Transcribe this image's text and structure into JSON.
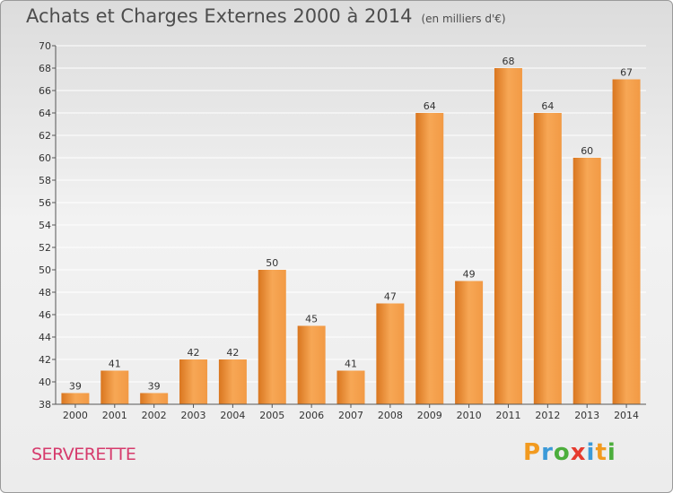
{
  "title": "Achats et Charges Externes 2000 à 2014",
  "unit": "(en milliers d'€)",
  "commune": "SERVERETTE",
  "logo": "Proxiti",
  "colors": {
    "bar_light": "#f7a755",
    "bar_dark": "#d4711b",
    "title": "#4d4d4d",
    "commune": "#d63a6c"
  },
  "chart_data": {
    "type": "bar",
    "categories": [
      "2000",
      "2001",
      "2002",
      "2003",
      "2004",
      "2005",
      "2006",
      "2007",
      "2008",
      "2009",
      "2010",
      "2011",
      "2012",
      "2013",
      "2014"
    ],
    "values": [
      39,
      41,
      39,
      42,
      42,
      50,
      45,
      41,
      47,
      64,
      49,
      68,
      64,
      60,
      67
    ],
    "ylim": [
      38,
      70
    ],
    "yticks": [
      38,
      40,
      42,
      44,
      46,
      48,
      50,
      52,
      54,
      56,
      58,
      60,
      62,
      64,
      66,
      68,
      70
    ],
    "grid": true,
    "xlabel": "",
    "ylabel": ""
  }
}
